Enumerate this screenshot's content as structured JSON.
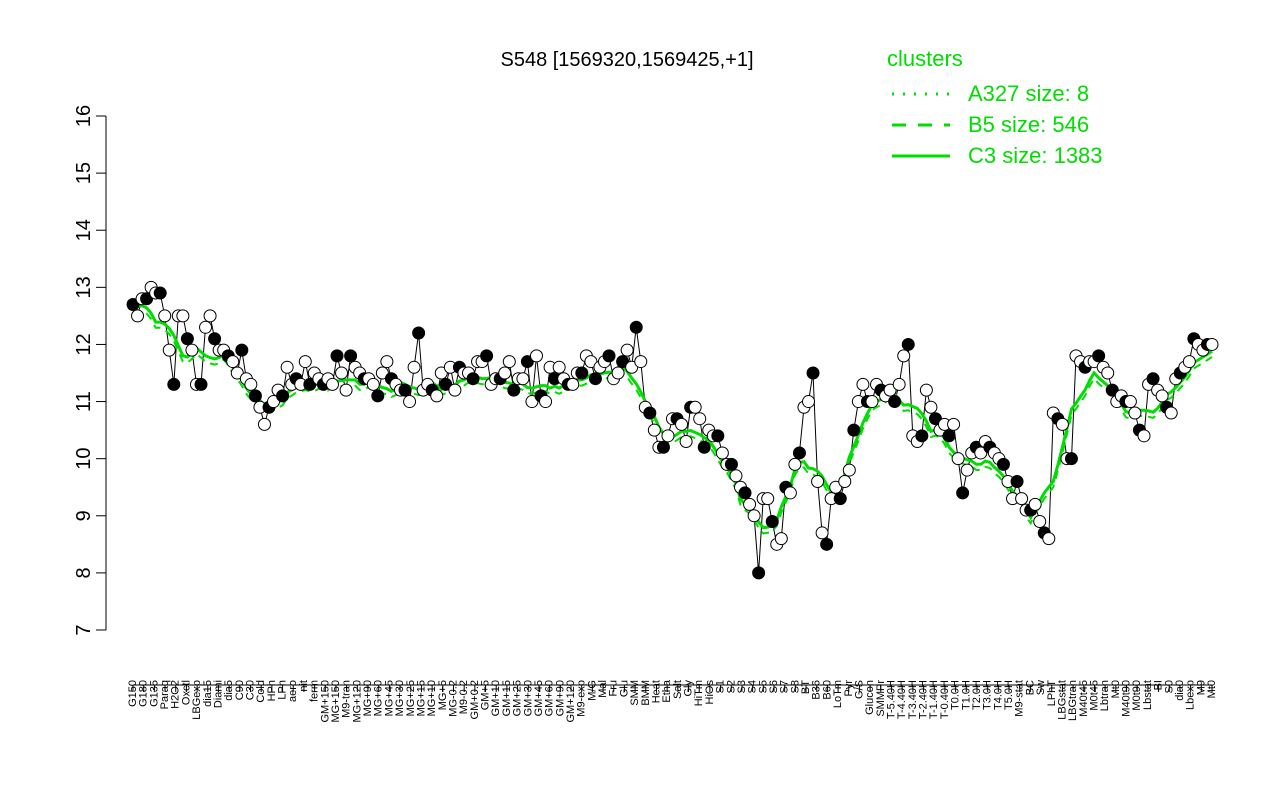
{
  "chart_data": {
    "type": "line",
    "title": "S548 [1569320,1569425,+1]",
    "xlabel": "",
    "ylabel": "",
    "ylim": [
      7,
      16
    ],
    "yticks": [
      7,
      8,
      9,
      10,
      11,
      12,
      13,
      14,
      15,
      16
    ],
    "legend": {
      "title": "clusters",
      "position": "top-right",
      "entries": [
        {
          "label": "A327 size: 8",
          "style": "dotted"
        },
        {
          "label": "B5 size: 546",
          "style": "dashed"
        },
        {
          "label": "C3 size: 1383",
          "style": "solid"
        }
      ]
    },
    "colors": {
      "cluster_line": "#00dd00",
      "point_open": "#ffffff",
      "point_filled": "#000000",
      "frame": "#000000"
    },
    "x_labels": [
      "G150",
      "G180",
      "G135",
      "Paraq",
      "H2O2",
      "Oxctl",
      "LBGexp",
      "dia15",
      "Diami",
      "dia5",
      "C90",
      "C30",
      "Cold",
      "HPh",
      "LPh",
      "aero",
      "nit",
      "ferm",
      "GM+150",
      "MG+150",
      "M9-tran",
      "MG+120",
      "MG+90",
      "MG+60",
      "MG+45",
      "MG+30",
      "MG+25",
      "MG+15",
      "MG+10",
      "MG+5",
      "MG-0.2",
      "M9-0.2",
      "GM+0.2",
      "GM+5",
      "GM+10",
      "GM+15",
      "GM+25",
      "GM+30",
      "GM+45",
      "GM+60",
      "GM+90",
      "GM+120",
      "M9-exp",
      "M/G",
      "Mal",
      "Fru",
      "Glu",
      "SMM",
      "BMM",
      "Heat",
      "Etha",
      "Salt",
      "Gly",
      "HiTm",
      "HiOs",
      "S1",
      "S2",
      "S3",
      "S4",
      "S5",
      "S6",
      "S7",
      "S8",
      "BT",
      "B36",
      "B60",
      "LoTm",
      "Pyr",
      "G/S",
      "Glucon",
      "SMMPr",
      "T-5.40H",
      "T-4.40H",
      "T-3.40H",
      "T-2.40H",
      "T-1.40H",
      "T-0.40H",
      "T0.0H",
      "T1.0H",
      "T2.0H",
      "T3.0H",
      "T4.0H",
      "T5.0H",
      "M9-stat",
      "BC",
      "Sw",
      "LPhT",
      "LBGstat",
      "LBGtran",
      "M40t45",
      "M0t45",
      "Lbtran",
      "Mt0",
      "M40t90",
      "M0t90",
      "Lbstat",
      "BI",
      "S0",
      "dia0",
      "Lbexp",
      "M9",
      "Mt0"
    ],
    "series": [
      {
        "values": [
          12.7,
          12.5,
          12.8,
          12.8,
          13.0,
          12.9,
          12.9,
          12.5,
          11.9,
          11.3,
          12.5,
          12.5,
          12.1,
          11.9,
          11.3,
          11.3,
          12.3,
          12.5,
          12.1,
          11.9,
          11.9,
          11.8,
          11.7,
          11.5,
          11.9,
          11.4,
          11.3,
          11.1,
          10.9,
          10.6,
          10.9,
          11.0,
          11.2,
          11.1,
          11.6,
          11.3,
          11.4,
          11.3,
          11.7,
          11.3,
          11.5,
          11.4,
          11.3,
          11.4,
          11.3,
          11.8,
          11.5,
          11.2,
          11.8,
          11.6,
          11.5,
          11.4,
          11.4,
          11.3,
          11.1,
          11.5,
          11.7,
          11.4,
          11.3,
          11.2,
          11.2,
          11.0,
          11.6,
          12.2,
          11.2,
          11.3,
          11.2,
          11.1,
          11.5,
          11.3,
          11.6,
          11.2,
          11.6,
          11.5,
          11.5,
          11.4,
          11.7,
          11.7,
          11.8,
          11.3,
          11.4,
          11.4,
          11.5,
          11.7,
          11.2,
          11.4,
          11.4,
          11.7,
          11.0,
          11.8,
          11.1,
          11.0,
          11.6,
          11.4,
          11.6,
          11.4,
          11.3,
          11.3,
          11.5,
          11.5,
          11.8,
          11.7,
          11.4,
          11.6,
          11.7,
          11.8,
          11.4,
          11.5,
          11.7,
          11.9,
          11.6,
          12.3,
          11.7,
          10.9,
          10.8,
          10.5,
          10.2,
          10.2,
          10.4,
          10.7,
          10.7,
          10.6,
          10.3,
          10.9,
          10.9,
          10.7,
          10.2,
          10.5,
          10.4,
          10.4,
          10.1,
          9.9,
          9.9,
          9.7,
          9.5,
          9.4,
          9.2,
          9.0,
          8.0,
          9.3,
          9.3,
          8.9,
          8.5,
          8.6,
          9.5,
          9.4,
          9.9,
          10.1,
          10.9,
          11.0,
          11.5,
          9.6,
          8.7,
          8.5,
          9.3,
          9.5,
          9.3,
          9.6,
          9.8,
          10.5,
          11.0,
          11.3,
          11.0,
          11.0,
          11.3,
          11.2,
          11.1,
          11.2,
          11.0,
          11.3,
          11.8,
          12.0,
          10.4,
          10.3,
          10.4,
          11.2,
          10.9,
          10.7,
          10.5,
          10.6,
          10.4,
          10.6,
          10.0,
          9.4,
          9.8,
          10.1,
          10.2,
          10.1,
          10.3,
          10.2,
          10.1,
          10.0,
          9.9,
          9.6,
          9.3,
          9.6,
          9.3,
          9.1,
          9.1,
          9.2,
          8.9,
          8.7,
          8.6,
          10.8,
          10.7,
          10.6,
          10.0,
          10.0,
          11.8,
          11.7,
          11.6,
          11.7,
          11.7,
          11.8,
          11.6,
          11.5,
          11.2,
          11.0,
          11.1,
          11.0,
          11.0,
          10.8,
          10.5,
          10.4,
          11.3,
          11.4,
          11.2,
          11.1,
          10.9,
          10.8,
          11.4,
          11.5,
          11.6,
          11.7,
          12.1,
          12.0,
          11.9,
          12.0,
          12.0
        ]
      }
    ]
  }
}
